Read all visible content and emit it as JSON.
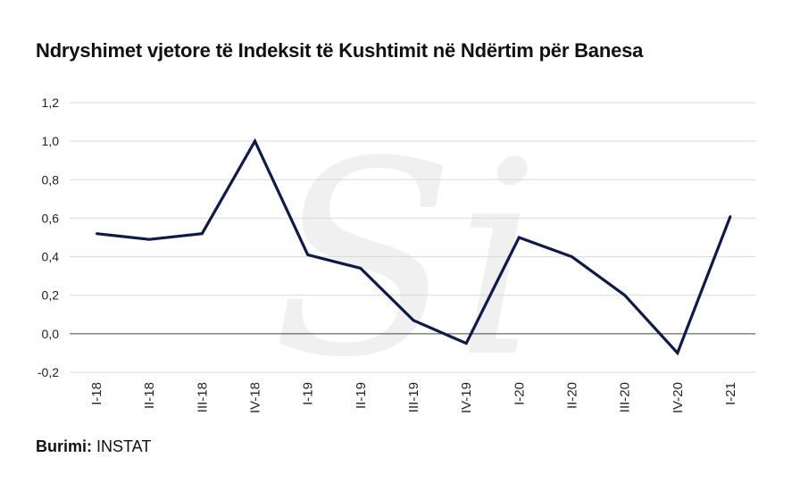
{
  "title": "Ndryshimet vjetore të Indeksit të Kushtimit në Ndërtim për Banesa",
  "source": {
    "label": "Burimi:",
    "value": "INSTAT"
  },
  "watermark": {
    "text": "Si"
  },
  "chart_data": {
    "type": "line",
    "categories": [
      "I-18",
      "II-18",
      "III-18",
      "IV-18",
      "I-19",
      "II-19",
      "III-19",
      "IV-19",
      "I-20",
      "II-20",
      "III-20",
      "IV-20",
      "I-21"
    ],
    "series": [
      {
        "values": [
          0.52,
          0.49,
          0.52,
          1.0,
          0.41,
          0.34,
          0.07,
          -0.05,
          0.5,
          0.4,
          0.2,
          -0.1,
          0.61
        ],
        "color": "#0f1a4a"
      }
    ],
    "ylim": [
      -0.2,
      1.2
    ],
    "yticks": [
      "-0,2",
      "0,0",
      "0,2",
      "0,4",
      "0,6",
      "0,8",
      "1,0",
      "1,2"
    ],
    "grid": true,
    "legend": "none"
  }
}
